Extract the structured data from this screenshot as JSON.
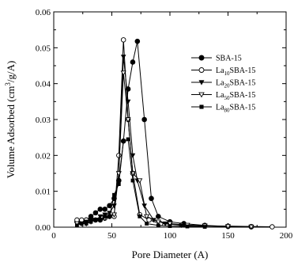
{
  "chart_data": {
    "type": "line",
    "xlabel": "Pore Diameter (A)",
    "ylabel_main": "Volume Adsorbed (cm",
    "ylabel_sup": "3",
    "ylabel_end": "/g/A)",
    "xlim": [
      0,
      200
    ],
    "ylim": [
      0,
      0.06
    ],
    "xticks": [
      0,
      50,
      100,
      150,
      200
    ],
    "yticks": [
      0.0,
      0.01,
      0.02,
      0.03,
      0.04,
      0.05,
      0.06
    ],
    "xtick_labels": [
      "0",
      "50",
      "100",
      "150",
      "200"
    ],
    "ytick_labels": [
      "0.00",
      "0.01",
      "0.02",
      "0.03",
      "0.04",
      "0.05",
      "0.06"
    ],
    "grid": false,
    "legend_position": "right",
    "series": [
      {
        "name": "SBA-15",
        "label_prefix": "SBA-15",
        "label_sub": "",
        "label_suffix": "",
        "marker": "circle-filled",
        "points": [
          [
            20,
            0.0015
          ],
          [
            24,
            0.0015
          ],
          [
            28,
            0.002
          ],
          [
            32,
            0.003
          ],
          [
            36,
            0.004
          ],
          [
            40,
            0.005
          ],
          [
            44,
            0.005
          ],
          [
            48,
            0.006
          ],
          [
            52,
            0.008
          ],
          [
            56,
            0.013
          ],
          [
            60,
            0.024
          ],
          [
            64,
            0.0385
          ],
          [
            68,
            0.046
          ],
          [
            72,
            0.0518
          ],
          [
            78,
            0.03
          ],
          [
            84,
            0.008
          ],
          [
            90,
            0.003
          ],
          [
            100,
            0.0015
          ],
          [
            112,
            0.001
          ],
          [
            130,
            0.0005
          ],
          [
            150,
            0.0002
          ],
          [
            170,
            0.0001
          ]
        ]
      },
      {
        "name": "La10SBA-15",
        "label_prefix": "La",
        "label_sub": "10",
        "label_suffix": "SBA-15",
        "marker": "circle-open",
        "points": [
          [
            20,
            0.002
          ],
          [
            24,
            0.002
          ],
          [
            28,
            0.002
          ],
          [
            32,
            0.002
          ],
          [
            36,
            0.002
          ],
          [
            40,
            0.002
          ],
          [
            44,
            0.0025
          ],
          [
            48,
            0.003
          ],
          [
            52,
            0.003
          ],
          [
            56,
            0.02
          ],
          [
            60,
            0.0522
          ],
          [
            64,
            0.03
          ],
          [
            68,
            0.015
          ],
          [
            74,
            0.0035
          ],
          [
            82,
            0.002
          ],
          [
            92,
            0.001
          ],
          [
            110,
            0.0006
          ],
          [
            130,
            0.0004
          ],
          [
            150,
            0.0003
          ],
          [
            170,
            0.0002
          ],
          [
            188,
            0.0001
          ]
        ]
      },
      {
        "name": "La20SBA-15",
        "label_prefix": "La",
        "label_sub": "20",
        "label_suffix": "SBA-15",
        "marker": "triangle-down-filled",
        "points": [
          [
            20,
            0.001
          ],
          [
            24,
            0.001
          ],
          [
            28,
            0.0015
          ],
          [
            32,
            0.002
          ],
          [
            36,
            0.002
          ],
          [
            40,
            0.003
          ],
          [
            44,
            0.0035
          ],
          [
            48,
            0.004
          ],
          [
            52,
            0.006
          ],
          [
            56,
            0.015
          ],
          [
            60,
            0.0475
          ],
          [
            64,
            0.035
          ],
          [
            68,
            0.02
          ],
          [
            72,
            0.013
          ],
          [
            78,
            0.006
          ],
          [
            86,
            0.002
          ],
          [
            96,
            0.001
          ],
          [
            110,
            0.0005
          ],
          [
            130,
            0.0003
          ],
          [
            150,
            0.0002
          ],
          [
            170,
            0.0001
          ]
        ]
      },
      {
        "name": "La50SBA-15",
        "label_prefix": "La",
        "label_sub": "50",
        "label_suffix": "SBA-15",
        "marker": "triangle-down-open",
        "points": [
          [
            20,
            0.001
          ],
          [
            24,
            0.001
          ],
          [
            28,
            0.001
          ],
          [
            32,
            0.0015
          ],
          [
            36,
            0.002
          ],
          [
            40,
            0.002
          ],
          [
            44,
            0.0025
          ],
          [
            48,
            0.003
          ],
          [
            52,
            0.0035
          ],
          [
            56,
            0.015
          ],
          [
            60,
            0.043
          ],
          [
            64,
            0.03
          ],
          [
            68,
            0.015
          ],
          [
            74,
            0.013
          ],
          [
            80,
            0.003
          ],
          [
            90,
            0.0015
          ],
          [
            100,
            0.001
          ],
          [
            115,
            0.0006
          ],
          [
            130,
            0.0004
          ],
          [
            150,
            0.0002
          ],
          [
            170,
            0.0001
          ]
        ]
      },
      {
        "name": "La80SBA-15",
        "label_prefix": "La",
        "label_sub": "80",
        "label_suffix": "SBA-15",
        "marker": "square-filled",
        "points": [
          [
            20,
            0.0005
          ],
          [
            24,
            0.001
          ],
          [
            28,
            0.001
          ],
          [
            32,
            0.0015
          ],
          [
            36,
            0.002
          ],
          [
            40,
            0.002
          ],
          [
            44,
            0.003
          ],
          [
            48,
            0.003
          ],
          [
            52,
            0.009
          ],
          [
            56,
            0.012
          ],
          [
            60,
            0.024
          ],
          [
            64,
            0.0245
          ],
          [
            68,
            0.013
          ],
          [
            74,
            0.003
          ],
          [
            80,
            0.001
          ],
          [
            90,
            0.0005
          ],
          [
            100,
            0.0003
          ],
          [
            115,
            0.0002
          ],
          [
            130,
            0.0001
          ]
        ]
      }
    ]
  }
}
